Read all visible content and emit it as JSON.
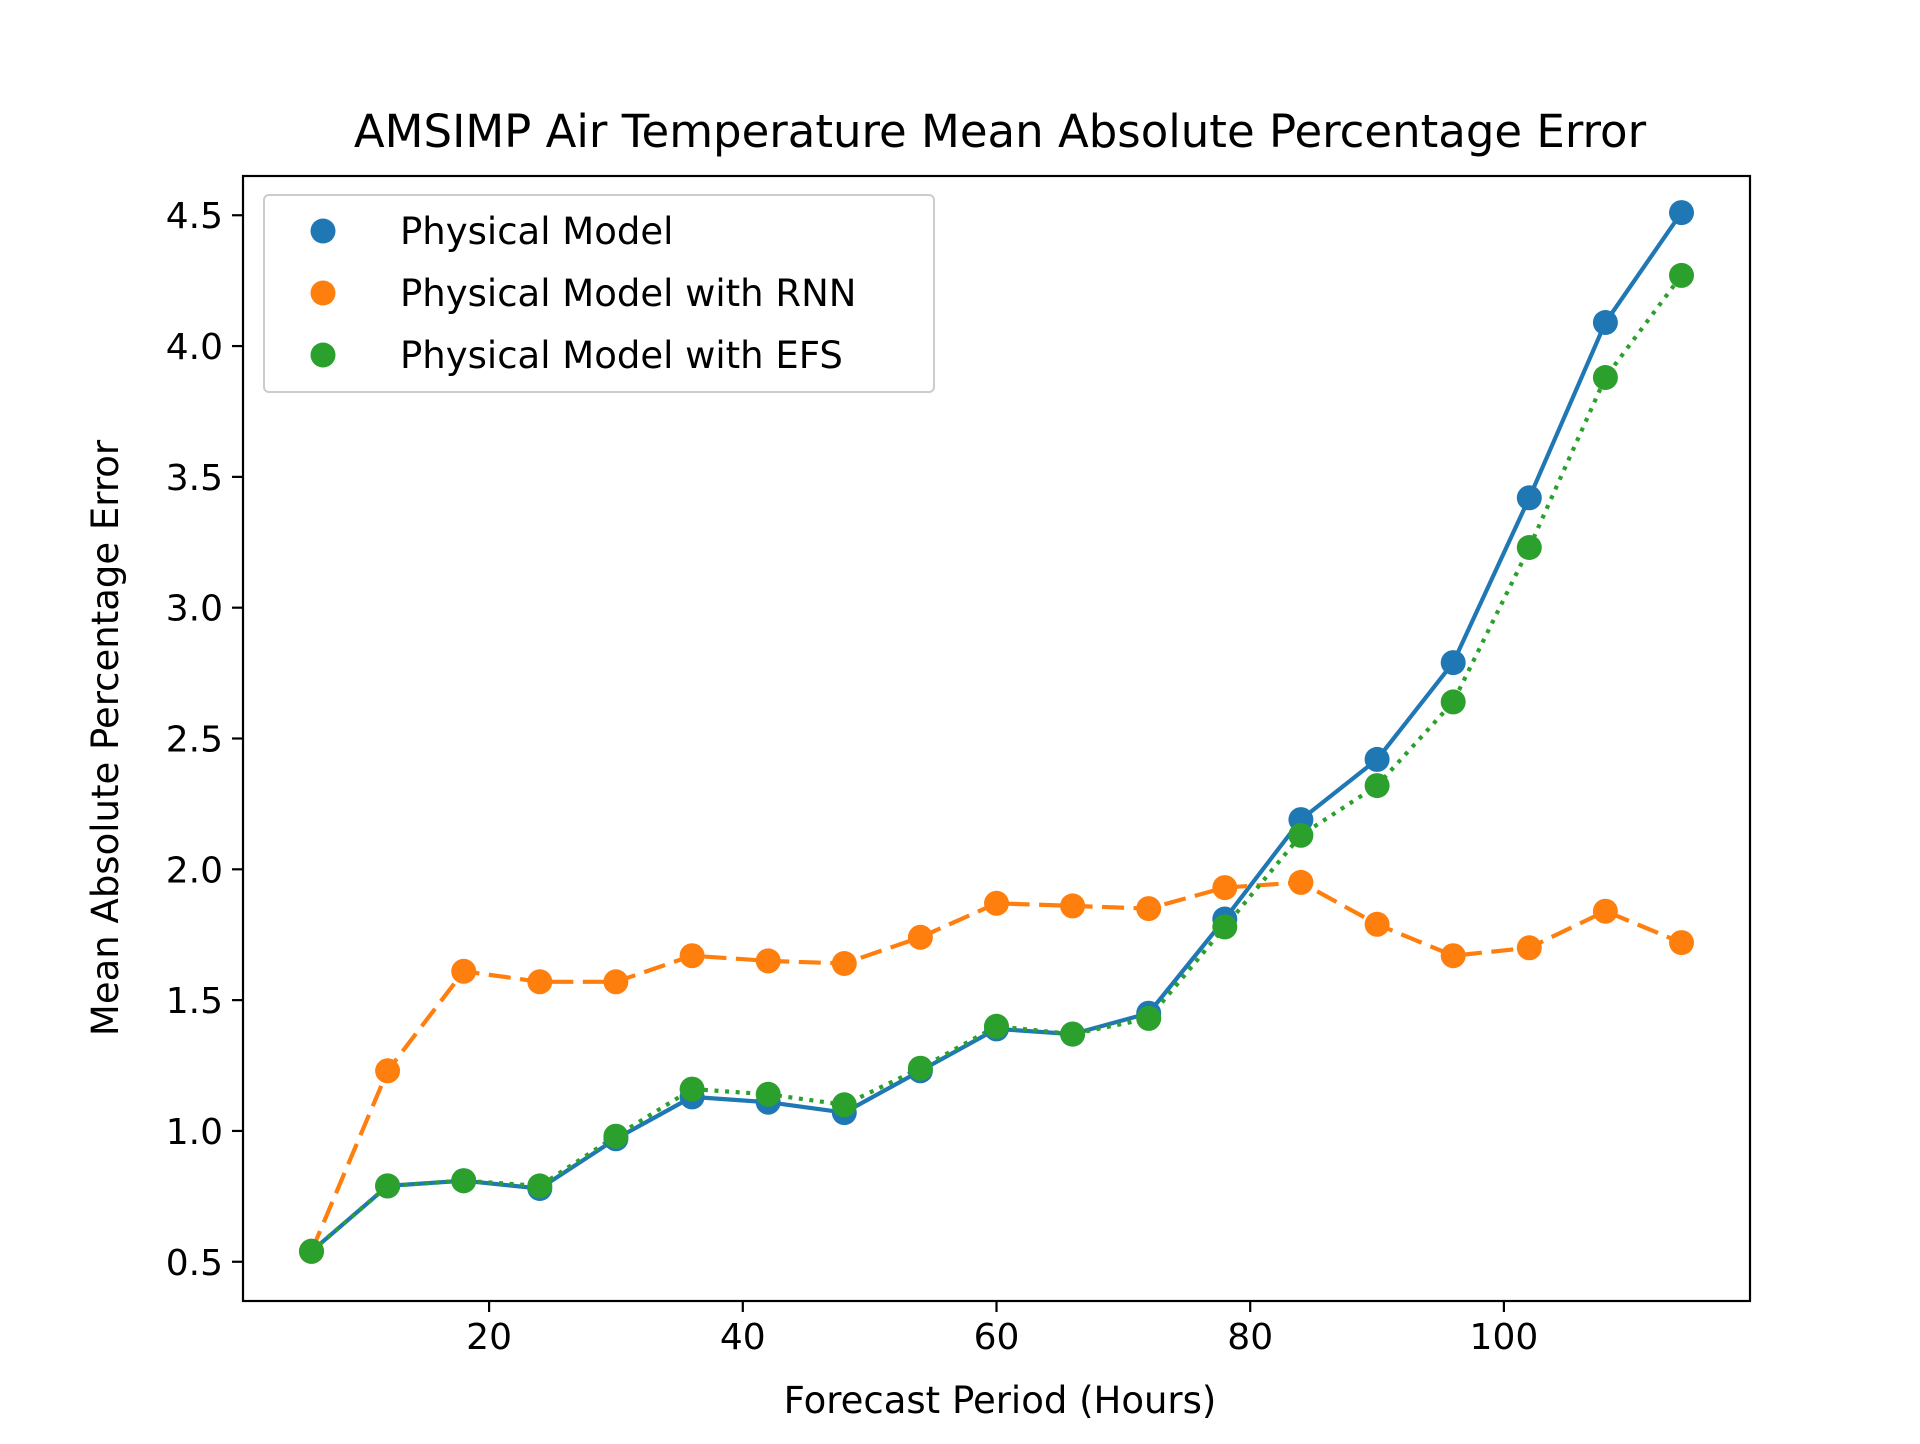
{
  "chart_data": {
    "type": "line",
    "title": "AMSIMP Air Temperature Mean Absolute Percentage Error",
    "xlabel": "Forecast Period (Hours)",
    "ylabel": "Mean Absolute Percentage Error",
    "xlim": [
      0.6,
      119.4
    ],
    "ylim": [
      0.35,
      4.65
    ],
    "xticks": [
      20,
      40,
      60,
      80,
      100
    ],
    "xtick_labels": [
      "20",
      "40",
      "60",
      "80",
      "100"
    ],
    "yticks": [
      0.5,
      1.0,
      1.5,
      2.0,
      2.5,
      3.0,
      3.5,
      4.0,
      4.5
    ],
    "ytick_labels": [
      "0.5",
      "1.0",
      "1.5",
      "2.0",
      "2.5",
      "3.0",
      "3.5",
      "4.0",
      "4.5"
    ],
    "grid": false,
    "legend_position": "top-left",
    "x": [
      6,
      12,
      18,
      24,
      30,
      36,
      42,
      48,
      54,
      60,
      66,
      72,
      78,
      84,
      90,
      96,
      102,
      108,
      114
    ],
    "series": [
      {
        "name": "Physical Model",
        "color": "#1f77b4",
        "line_style": "solid",
        "values": [
          0.54,
          0.79,
          0.81,
          0.78,
          0.97,
          1.13,
          1.11,
          1.07,
          1.23,
          1.39,
          1.37,
          1.45,
          1.81,
          2.19,
          2.42,
          2.79,
          3.42,
          4.09,
          4.51
        ]
      },
      {
        "name": "Physical Model with RNN",
        "color": "#ff7f0e",
        "line_style": "dashed",
        "values": [
          0.54,
          1.23,
          1.61,
          1.57,
          1.57,
          1.67,
          1.65,
          1.64,
          1.74,
          1.87,
          1.86,
          1.85,
          1.93,
          1.95,
          1.79,
          1.67,
          1.7,
          1.84,
          1.72
        ]
      },
      {
        "name": "Physical Model with EFS",
        "color": "#2ca02c",
        "line_style": "dotted",
        "values": [
          0.54,
          0.79,
          0.81,
          0.79,
          0.98,
          1.16,
          1.14,
          1.1,
          1.24,
          1.4,
          1.37,
          1.43,
          1.78,
          2.13,
          2.32,
          2.64,
          3.23,
          3.88,
          4.27
        ]
      }
    ]
  }
}
